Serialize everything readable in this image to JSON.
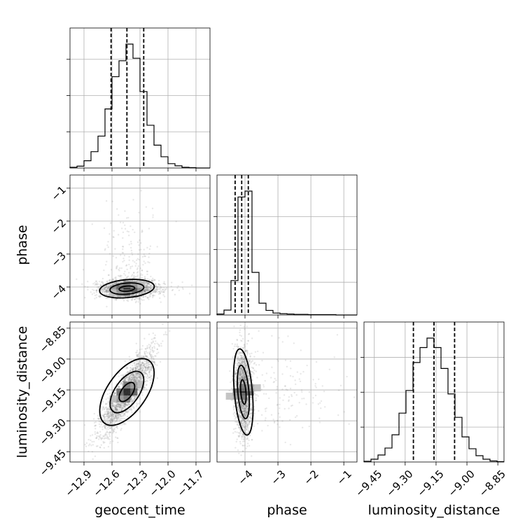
{
  "chart_data": {
    "type": "corner",
    "parameters": [
      "geocent_time",
      "phase",
      "luminosity_distance"
    ],
    "labels": {
      "geocent_time": "geocent_time",
      "phase": "phase",
      "luminosity_distance": "luminosity_distance"
    },
    "ranges": {
      "geocent_time": [
        -13.05,
        -11.55
      ],
      "phase": [
        -4.85,
        -0.6
      ],
      "luminosity_distance": [
        -9.5,
        -8.82
      ]
    },
    "ticks": {
      "geocent_time": [
        -12.9,
        -12.6,
        -12.3,
        -12.0,
        -11.7
      ],
      "phase": [
        -4,
        -3,
        -2,
        -1
      ],
      "luminosity_distance": [
        -9.45,
        -9.3,
        -9.15,
        -9.0,
        -8.85
      ]
    },
    "tick_labels": {
      "geocent_time": [
        "−12.9",
        "−12.6",
        "−12.3",
        "−12.0",
        "−11.7"
      ],
      "phase": [
        "−4",
        "−3",
        "−2",
        "−1"
      ],
      "luminosity_distance": [
        "−9.45",
        "−9.30",
        "−9.15",
        "−9.00",
        "−8.85"
      ]
    },
    "quantiles": {
      "geocent_time": [
        -12.61,
        -12.44,
        -12.26
      ],
      "phase": [
        -4.3,
        -4.1,
        -3.9
      ],
      "luminosity_distance": [
        -9.26,
        -9.16,
        -9.06
      ]
    },
    "histograms": {
      "geocent_time": {
        "bin_edges": [
          -13.05,
          -12.975,
          -12.9,
          -12.825,
          -12.75,
          -12.675,
          -12.6,
          -12.525,
          -12.45,
          -12.375,
          -12.3,
          -12.225,
          -12.15,
          -12.075,
          -12.0,
          -11.925,
          -11.85,
          -11.775,
          -11.7,
          -11.625,
          -11.55
        ],
        "counts": [
          2,
          5,
          20,
          45,
          88,
          163,
          252,
          296,
          342,
          303,
          211,
          118,
          63,
          31,
          12,
          6,
          2,
          1,
          0,
          0
        ]
      },
      "phase": {
        "bin_edges": [
          -4.85,
          -4.6375,
          -4.425,
          -4.2125,
          -4.0,
          -3.7875,
          -3.575,
          -3.3625,
          -3.15,
          -2.9375,
          -2.725,
          -2.5125,
          -2.3,
          -2.0875,
          -1.875,
          -1.6625,
          -1.45,
          -1.2375,
          -1.025,
          -0.8125,
          -0.6
        ],
        "counts": [
          3,
          15,
          105,
          360,
          378,
          130,
          36,
          14,
          6,
          4,
          3,
          2,
          2,
          1,
          1,
          1,
          1,
          0,
          0,
          0
        ]
      },
      "luminosity_distance": {
        "bin_edges": [
          -9.5,
          -9.466,
          -9.432,
          -9.398,
          -9.364,
          -9.33,
          -9.296,
          -9.262,
          -9.228,
          -9.194,
          -9.16,
          -9.126,
          -9.092,
          -9.058,
          -9.024,
          -8.99,
          -8.956,
          -8.922,
          -8.888,
          -8.854,
          -8.82
        ],
        "counts": [
          2,
          8,
          20,
          40,
          78,
          140,
          205,
          285,
          328,
          355,
          328,
          268,
          195,
          128,
          72,
          38,
          18,
          8,
          3,
          1
        ]
      }
    },
    "hist2d_mode": {
      "phase_vs_geocent_time": {
        "x": -12.44,
        "y": -4.05
      },
      "luminosity_distance_vs_geocent_time": {
        "x": -12.44,
        "y": -9.16
      },
      "luminosity_distance_vs_phase": {
        "x": -4.05,
        "y": -9.16
      }
    },
    "grid": true,
    "style": {
      "line_color": "#000000",
      "grid_color": "#b0b0b0",
      "scatter_color": "#808080"
    }
  }
}
